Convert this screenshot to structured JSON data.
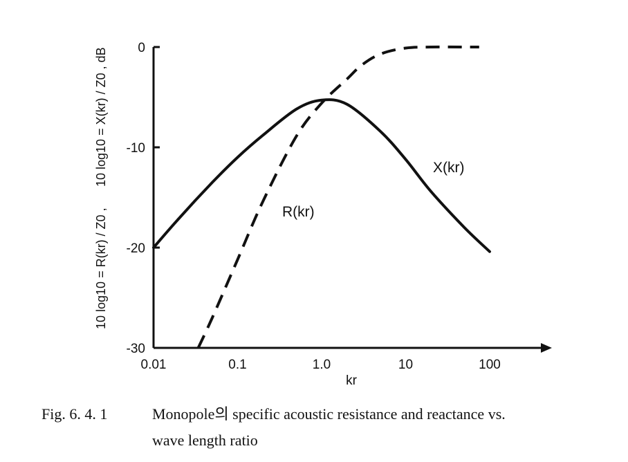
{
  "chart_data": {
    "type": "line",
    "x_scale": "log",
    "xlim": [
      0.01,
      800
    ],
    "ylim": [
      -30,
      0
    ],
    "x_ticks": [
      0.01,
      0.1,
      1.0,
      10,
      100
    ],
    "x_tick_labels": [
      "0.01",
      "0.1",
      "1.0",
      "10",
      "100"
    ],
    "y_ticks": [
      0,
      -10,
      -20,
      -30
    ],
    "y_tick_labels": [
      "0",
      "-10",
      "-20",
      "-30"
    ],
    "xlabel": "kr",
    "ylabel": {
      "lower": "10 log10 = R(kr) / Z0 ,",
      "upper": "10 log10 = X(kr) / Z0 , dB"
    },
    "grid": false,
    "series": [
      {
        "name": "X(kr)",
        "style": "solid",
        "x": [
          0.01,
          0.02,
          0.05,
          0.1,
          0.2,
          0.5,
          1.0,
          2.0,
          5.0,
          10,
          20,
          50,
          100
        ],
        "y": [
          -20.0,
          -17.1,
          -13.5,
          -11.0,
          -8.8,
          -6.2,
          -5.3,
          -5.7,
          -8.4,
          -11.2,
          -14.4,
          -18.0,
          -20.4
        ]
      },
      {
        "name": "R(kr)",
        "style": "dashed",
        "x": [
          0.034,
          0.05,
          0.1,
          0.2,
          0.5,
          1.0,
          2.0,
          3.0,
          5.0,
          10,
          20,
          50,
          75
        ],
        "y": [
          -30.0,
          -27.0,
          -21.2,
          -15.4,
          -8.9,
          -5.6,
          -3.2,
          -1.8,
          -0.7,
          -0.1,
          0.0,
          0.0,
          0.0
        ]
      }
    ],
    "annotations": [
      {
        "text": "X(kr)",
        "series": "X(kr)"
      },
      {
        "text": "R(kr)",
        "series": "R(kr)"
      }
    ]
  },
  "caption": {
    "figure_number": "Fig. 6. 4. 1",
    "line1": "Monopole의  specific acoustic resistance and reactance vs.",
    "line2": "wave length ratio"
  }
}
